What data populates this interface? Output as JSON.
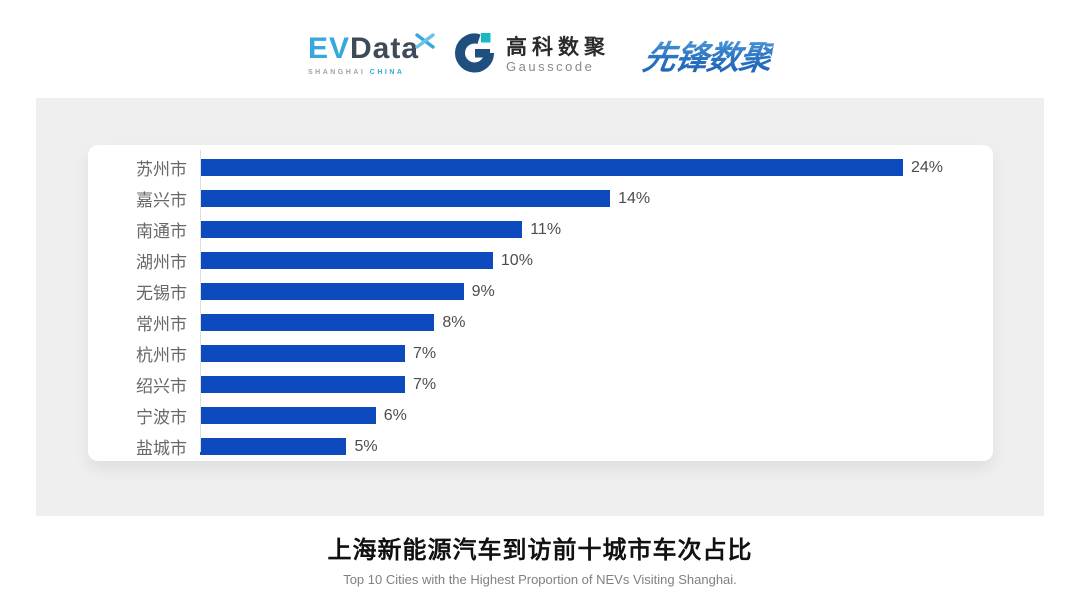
{
  "header": {
    "evdata": {
      "word_ev": "EV",
      "word_data": "Data",
      "sub_left": "SHANGHAI",
      "sub_right": "CHINA",
      "colors": {
        "ev": "#35a8dc",
        "data": "#3d4a57"
      }
    },
    "gausscode": {
      "cn": "高科数聚",
      "en": "Gausscode",
      "mark_dark": "#1f4f7e",
      "mark_accent": "#18b8c4"
    },
    "pioneer": {
      "text": "先锋数聚",
      "color_top": "#5aa6e2",
      "color_bottom": "#1c5fb4"
    }
  },
  "chart_data": {
    "type": "bar",
    "orientation": "horizontal",
    "categories": [
      "苏州市",
      "嘉兴市",
      "南通市",
      "湖州市",
      "无锡市",
      "常州市",
      "杭州市",
      "绍兴市",
      "宁波市",
      "盐城市"
    ],
    "values": [
      24,
      14,
      11,
      10,
      9,
      8,
      7,
      7,
      6,
      5
    ],
    "value_labels": [
      "24%",
      "14%",
      "11%",
      "10%",
      "9%",
      "8%",
      "7%",
      "7%",
      "6%",
      "5%"
    ],
    "unit": "%",
    "bar_color": "#0d4abe",
    "xlim": [
      0,
      26
    ],
    "grid": false,
    "legend": "none",
    "title": "上海新能源汽车到访前十城市车次占比",
    "subtitle": "Top 10 Cities with the Highest Proportion of  NEVs Visiting Shanghai."
  },
  "footer": {
    "title": "上海新能源汽车到访前十城市车次占比",
    "subtitle": "Top 10 Cities with the Highest Proportion of  NEVs Visiting Shanghai."
  },
  "colors": {
    "panel_bg": "#efefef",
    "card_bg": "#ffffff",
    "axis_line": "#dfdfdf",
    "city_label": "#686868",
    "value_label": "#4d4d4d"
  }
}
